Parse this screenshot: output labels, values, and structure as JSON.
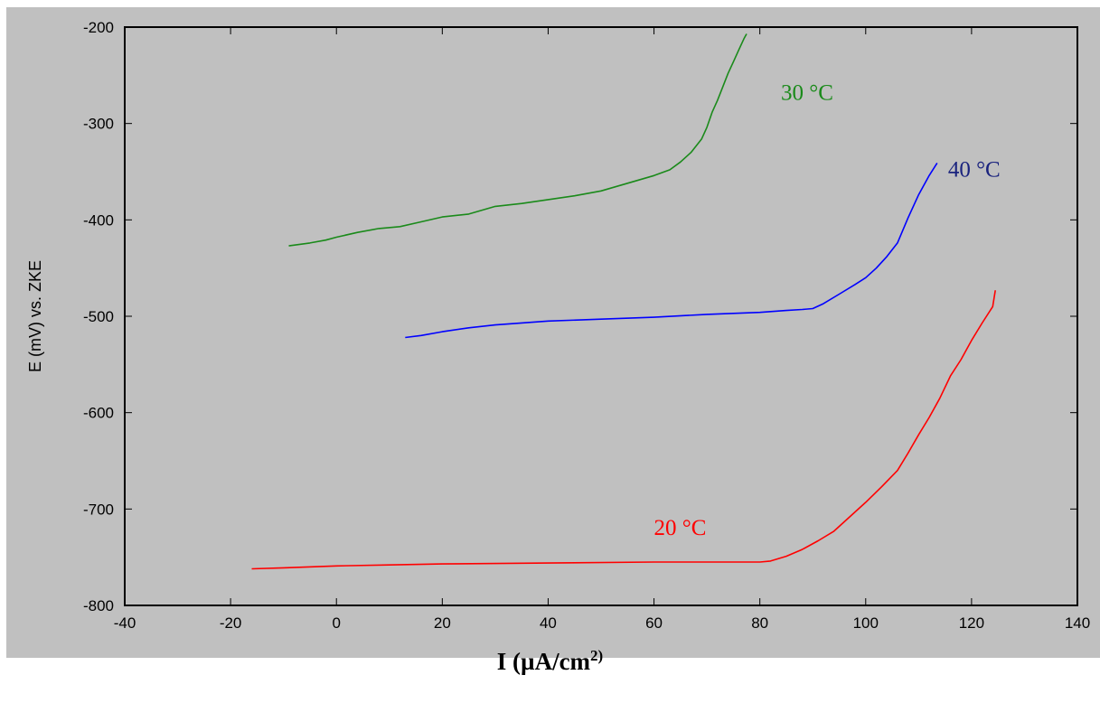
{
  "chart_data": {
    "type": "line",
    "title": "",
    "xlabel": {
      "main": "I (µA/cm",
      "sup": "2)"
    },
    "ylabel": "E (mV) vs. ZKE",
    "xlim": [
      -40,
      140
    ],
    "ylim": [
      -800,
      -200
    ],
    "xticks": [
      -40,
      -20,
      0,
      20,
      40,
      60,
      80,
      100,
      120,
      140
    ],
    "yticks": [
      -200,
      -300,
      -400,
      -500,
      -600,
      -700,
      -800
    ],
    "grid": false,
    "background": "#c0c0c0",
    "series": [
      {
        "name": "30 °C",
        "color": "#1a8a1a",
        "x": [
          -9,
          -5,
          -2,
          0,
          4,
          8,
          12,
          16,
          20,
          25,
          30,
          35,
          40,
          45,
          50,
          55,
          60,
          63,
          65,
          67,
          69,
          70,
          71,
          72,
          73,
          74,
          75,
          76,
          77,
          77.5
        ],
        "y": [
          -427,
          -424,
          -421,
          -418,
          -413,
          -409,
          -407,
          -402,
          -397,
          -394,
          -386,
          -383,
          -379,
          -375,
          -370,
          -362,
          -354,
          -348,
          -340,
          -330,
          -316,
          -304,
          -288,
          -276,
          -262,
          -248,
          -236,
          -224,
          -212,
          -207
        ]
      },
      {
        "name": "40 °C",
        "color": "#0000ff",
        "labelColor": "#1a237e",
        "x": [
          13,
          16,
          20,
          25,
          30,
          40,
          50,
          60,
          70,
          80,
          85,
          88,
          90,
          92,
          95,
          98,
          100,
          102,
          104,
          106,
          108,
          110,
          112,
          113.5
        ],
        "y": [
          -522,
          -520,
          -516,
          -512,
          -509,
          -505,
          -503,
          -501,
          -498,
          -496,
          -494,
          -493,
          -492,
          -487,
          -477,
          -467,
          -460,
          -450,
          -438,
          -424,
          -398,
          -374,
          -354,
          -341
        ]
      },
      {
        "name": "20 °C",
        "color": "#ff0000",
        "x": [
          -16,
          -10,
          0,
          10,
          20,
          40,
          60,
          70,
          80,
          82,
          85,
          88,
          91,
          94,
          97,
          100,
          103,
          106,
          108,
          110,
          112,
          114,
          116,
          118,
          120,
          122,
          124,
          124.5
        ],
        "y": [
          -762,
          -761,
          -759,
          -758,
          -757,
          -756,
          -755,
          -755,
          -755,
          -754,
          -749,
          -742,
          -733,
          -723,
          -708,
          -693,
          -677,
          -660,
          -642,
          -623,
          -605,
          -585,
          -562,
          -545,
          -525,
          -507,
          -490,
          -473
        ]
      }
    ]
  }
}
